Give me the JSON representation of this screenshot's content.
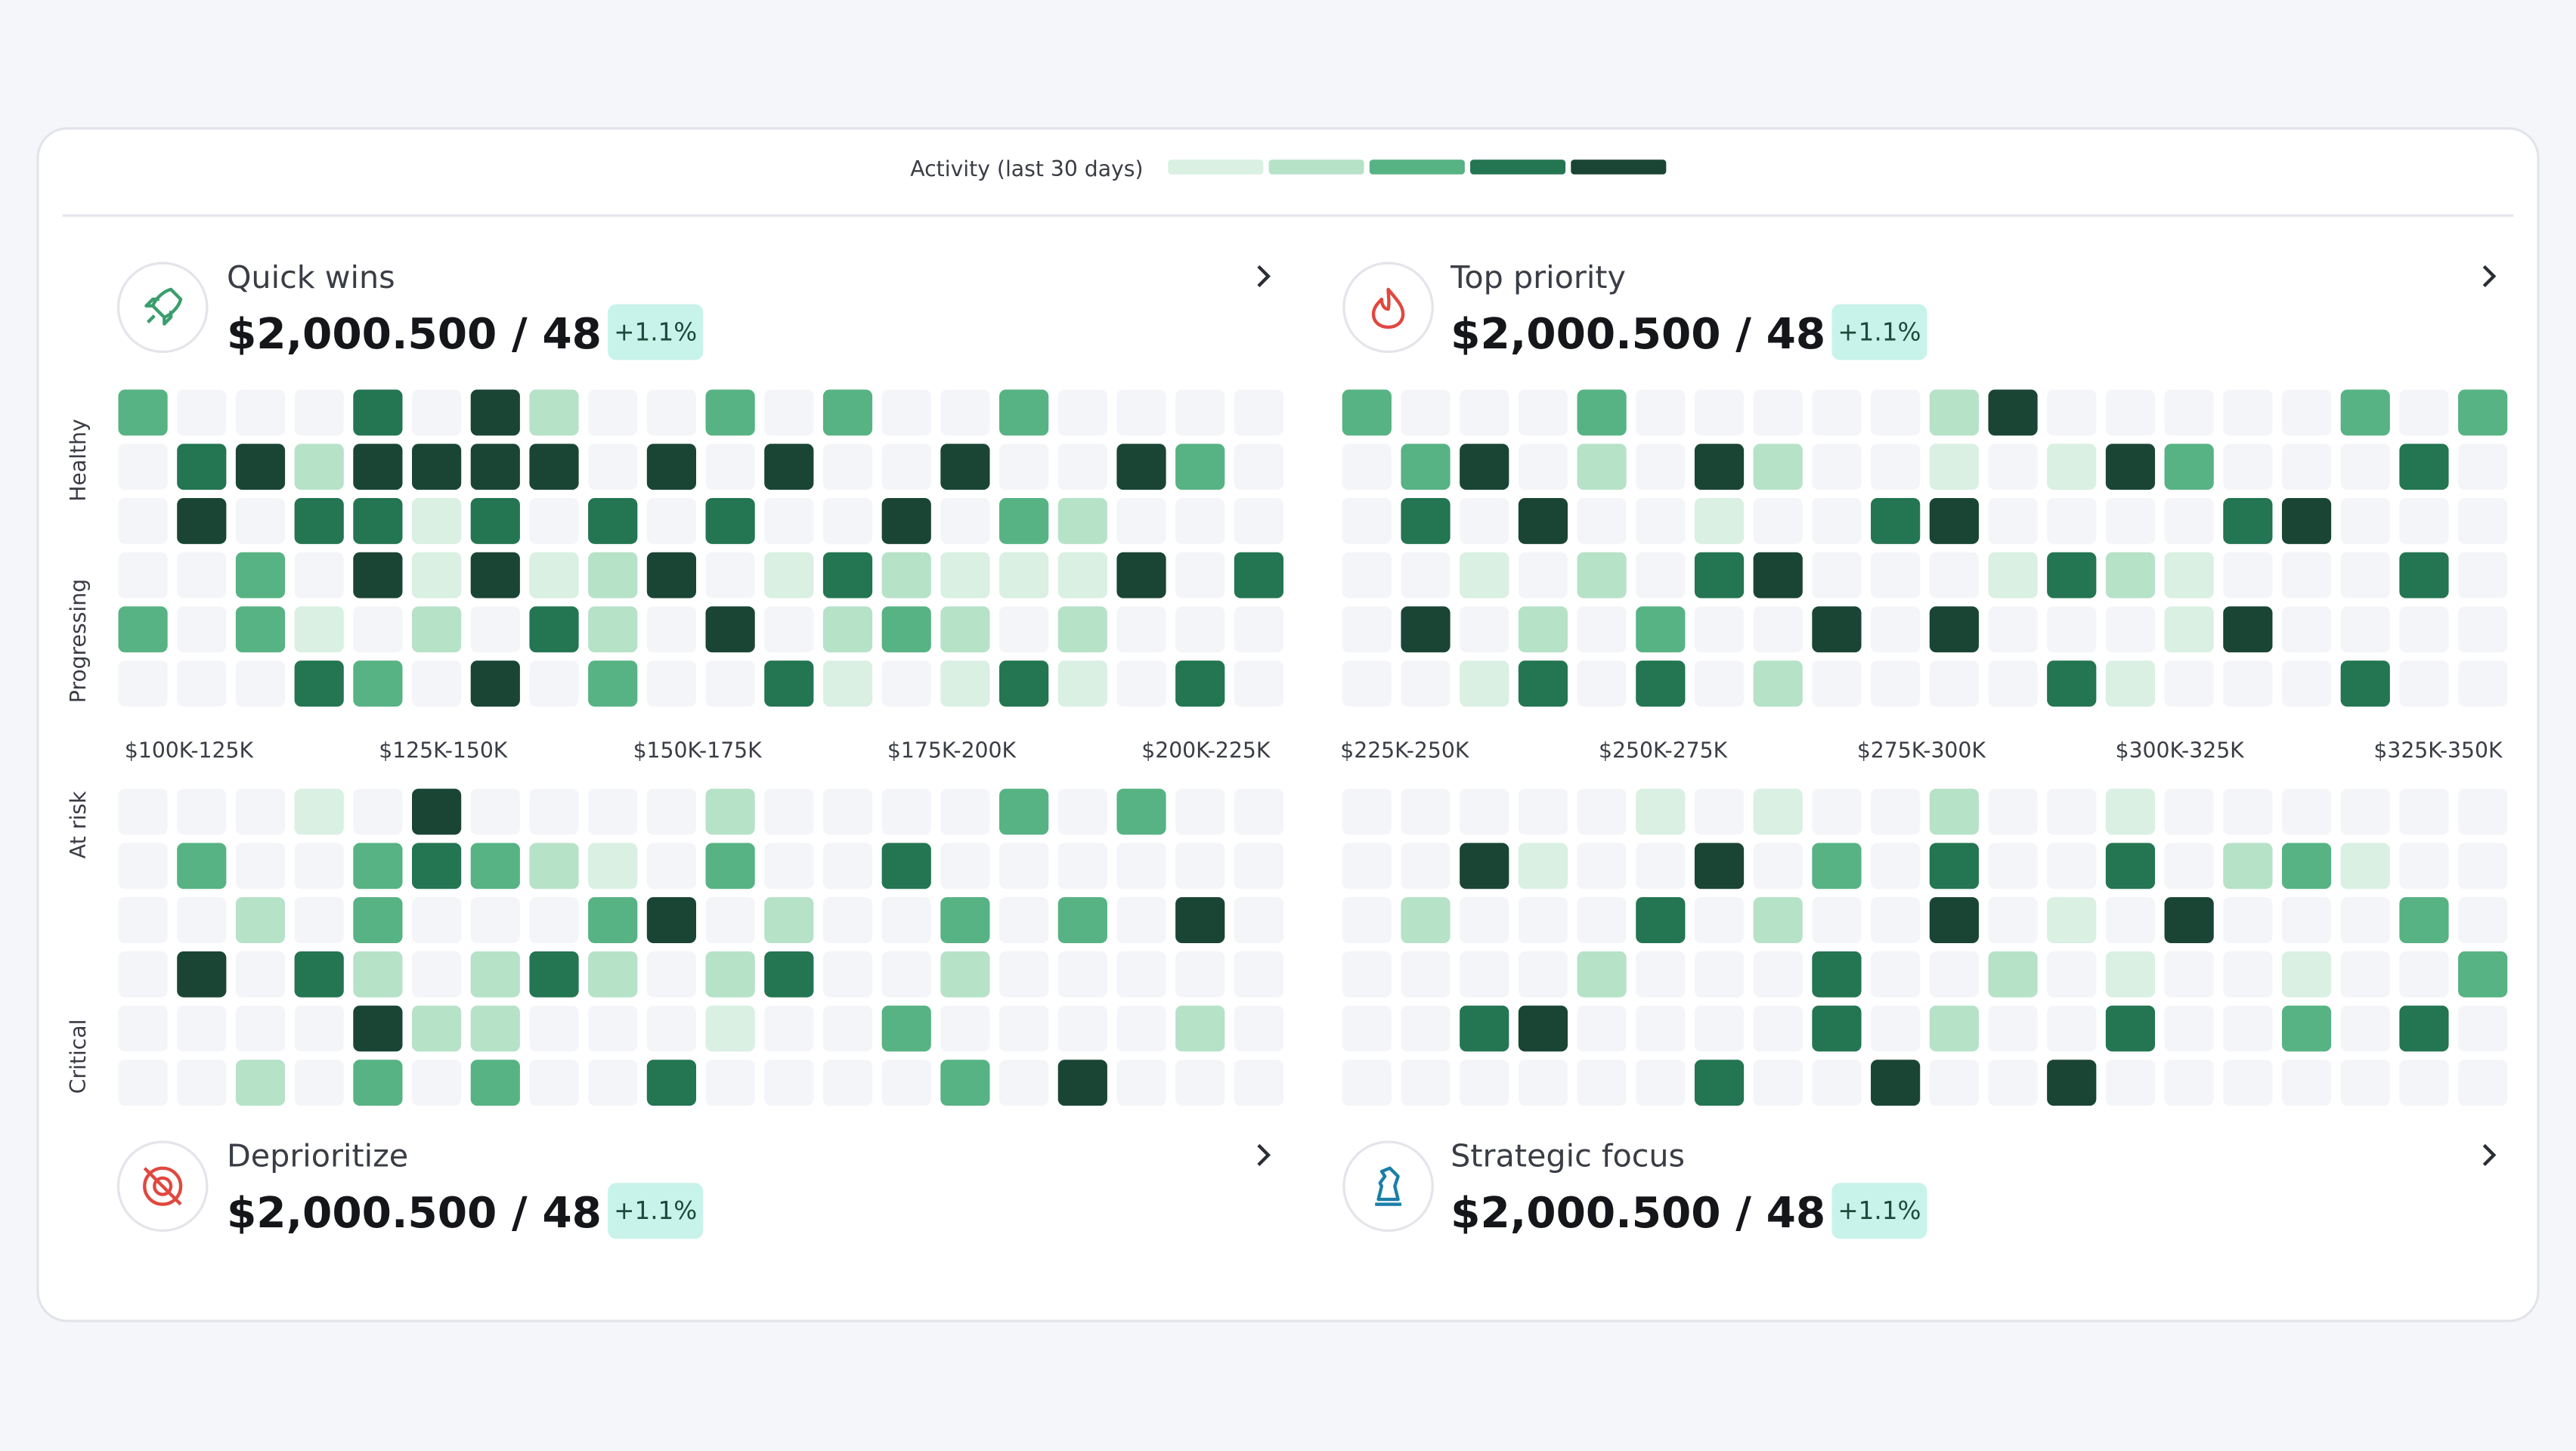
{
  "legend": {
    "label": "Activity (last 30 days)"
  },
  "quadrants": [
    {
      "title": "Quick wins",
      "value": "$2,000.500 / 48",
      "change": "+1.1%"
    },
    {
      "title": "Top priority",
      "value": "$2,000.500 / 48",
      "change": "+1.1%"
    },
    {
      "title": "Deprioritize",
      "value": "$2,000.500 / 48",
      "change": "+1.1%"
    },
    {
      "title": "Strategic focus",
      "value": "$2,000.500 / 48",
      "change": "+1.1%"
    }
  ],
  "heatmap": {
    "row_labels": [
      "Healthy",
      "Progressing",
      "At risk",
      "Critical"
    ],
    "column_labels": [
      "$100K-125K",
      "$125K-150K",
      "$150K-175K",
      "$175K-200K",
      "$200K-225K",
      "$225K-250K",
      "$250K-275K",
      "$275K-300K",
      "$300K-325K",
      "$325K-350K"
    ],
    "level_colors": [
      "#f4f5f8",
      "#d9f0e2",
      "#b6e2c8",
      "#57b383",
      "#247552",
      "#1a4535"
    ],
    "cells": [
      [
        3,
        0,
        0,
        0,
        4,
        0,
        5,
        2,
        0,
        0,
        3,
        0,
        3,
        0,
        0,
        3,
        0,
        0,
        0,
        0,
        3,
        0,
        0,
        0,
        3,
        0,
        0,
        0,
        0,
        0,
        2,
        5,
        0,
        0,
        0,
        0,
        0,
        3,
        0,
        3
      ],
      [
        0,
        4,
        5,
        2,
        5,
        5,
        5,
        5,
        0,
        5,
        0,
        5,
        0,
        0,
        5,
        0,
        0,
        5,
        3,
        0,
        0,
        3,
        5,
        0,
        2,
        0,
        5,
        2,
        0,
        0,
        1,
        0,
        1,
        5,
        3,
        0,
        0,
        0,
        4,
        0
      ],
      [
        0,
        5,
        0,
        4,
        4,
        1,
        4,
        0,
        4,
        0,
        4,
        0,
        0,
        5,
        0,
        3,
        2,
        0,
        0,
        0,
        0,
        4,
        0,
        5,
        0,
        0,
        1,
        0,
        0,
        4,
        5,
        0,
        0,
        0,
        0,
        4,
        5,
        0,
        0,
        0
      ],
      [
        0,
        0,
        3,
        0,
        5,
        1,
        5,
        1,
        2,
        5,
        0,
        1,
        4,
        2,
        1,
        1,
        1,
        5,
        0,
        4,
        0,
        0,
        1,
        0,
        2,
        0,
        4,
        5,
        0,
        0,
        0,
        1,
        4,
        2,
        1,
        0,
        0,
        0,
        4,
        0
      ],
      [
        3,
        0,
        3,
        1,
        0,
        2,
        0,
        4,
        2,
        0,
        5,
        0,
        2,
        3,
        2,
        0,
        2,
        0,
        0,
        0,
        0,
        5,
        0,
        2,
        0,
        3,
        0,
        0,
        5,
        0,
        5,
        0,
        0,
        0,
        1,
        5,
        0,
        0,
        0,
        0
      ],
      [
        0,
        0,
        0,
        4,
        3,
        0,
        5,
        0,
        3,
        0,
        0,
        4,
        1,
        0,
        1,
        4,
        1,
        0,
        4,
        0,
        0,
        0,
        1,
        4,
        0,
        4,
        0,
        2,
        0,
        0,
        0,
        0,
        4,
        1,
        0,
        0,
        0,
        4,
        0,
        0
      ],
      [
        0,
        0,
        0,
        1,
        0,
        5,
        0,
        0,
        0,
        0,
        2,
        0,
        0,
        0,
        0,
        3,
        0,
        3,
        0,
        0,
        0,
        0,
        0,
        0,
        0,
        1,
        0,
        1,
        0,
        0,
        2,
        0,
        0,
        1,
        0,
        0,
        0,
        0,
        0,
        0
      ],
      [
        0,
        3,
        0,
        0,
        3,
        4,
        3,
        2,
        1,
        0,
        3,
        0,
        0,
        4,
        0,
        0,
        0,
        0,
        0,
        0,
        0,
        0,
        5,
        1,
        0,
        0,
        5,
        0,
        3,
        0,
        4,
        0,
        0,
        4,
        0,
        2,
        3,
        1,
        0,
        0
      ],
      [
        0,
        0,
        2,
        0,
        3,
        0,
        0,
        0,
        3,
        5,
        0,
        2,
        0,
        0,
        3,
        0,
        3,
        0,
        5,
        0,
        0,
        2,
        0,
        0,
        0,
        4,
        0,
        2,
        0,
        0,
        5,
        0,
        1,
        0,
        5,
        0,
        0,
        0,
        3,
        0
      ],
      [
        0,
        5,
        0,
        4,
        2,
        0,
        2,
        4,
        2,
        0,
        2,
        4,
        0,
        0,
        2,
        0,
        0,
        0,
        0,
        0,
        0,
        0,
        0,
        0,
        2,
        0,
        0,
        0,
        4,
        0,
        0,
        2,
        0,
        1,
        0,
        0,
        1,
        0,
        0,
        3
      ],
      [
        0,
        0,
        0,
        0,
        5,
        2,
        2,
        0,
        0,
        0,
        1,
        0,
        0,
        3,
        0,
        0,
        0,
        0,
        2,
        0,
        0,
        0,
        4,
        5,
        0,
        0,
        0,
        0,
        4,
        0,
        2,
        0,
        0,
        4,
        0,
        0,
        3,
        0,
        4,
        0
      ],
      [
        0,
        0,
        2,
        0,
        3,
        0,
        3,
        0,
        0,
        4,
        0,
        0,
        0,
        0,
        3,
        0,
        5,
        0,
        0,
        0,
        0,
        0,
        0,
        0,
        0,
        0,
        4,
        0,
        0,
        5,
        0,
        0,
        5,
        0,
        0,
        0,
        0,
        0,
        0,
        0
      ]
    ]
  }
}
